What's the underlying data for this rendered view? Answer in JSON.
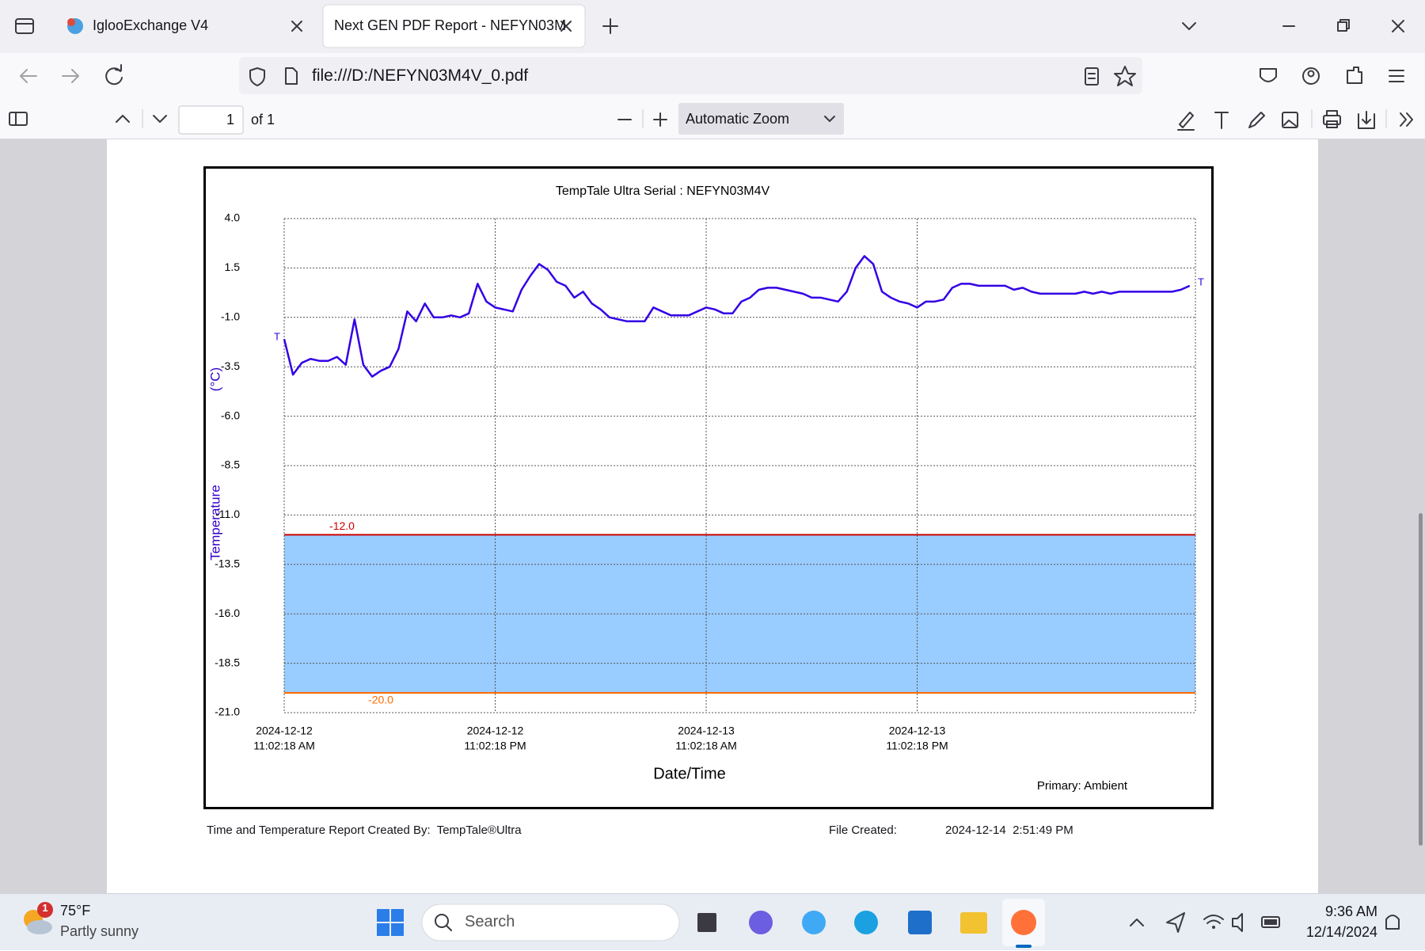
{
  "browser": {
    "tabs": [
      "IglooExchange V4",
      "Next GEN PDF Report - NEFYN03M"
    ],
    "url": "file:///D:/NEFYN03M4V_0.pdf"
  },
  "pdf_toolbar": {
    "page": "1",
    "page_count": "of 1",
    "zoom": "Automatic Zoom"
  },
  "chart_data": {
    "type": "line",
    "title": "TempTale Ultra  Serial : NEFYN03M4V",
    "y_label": "Temperature",
    "y_unit": "(°C)",
    "x_label": "Date/Time",
    "primary_label": "Primary: Ambient",
    "trip_marker": "T",
    "x": [
      "2024-12-12T11:02:18",
      "2024-12-12T11:32:18",
      "2024-12-12T12:02:18",
      "2024-12-12T12:32:18",
      "2024-12-12T13:02:18",
      "2024-12-12T13:32:18",
      "2024-12-12T14:02:18",
      "2024-12-12T14:32:18",
      "2024-12-12T15:02:18",
      "2024-12-12T15:32:18",
      "2024-12-12T16:02:18",
      "2024-12-12T16:32:18",
      "2024-12-12T17:02:18",
      "2024-12-12T17:32:18",
      "2024-12-12T18:02:18",
      "2024-12-12T18:32:18",
      "2024-12-12T19:02:18",
      "2024-12-12T19:32:18",
      "2024-12-12T20:02:18",
      "2024-12-12T20:32:18",
      "2024-12-12T21:02:18",
      "2024-12-12T21:32:18",
      "2024-12-12T22:02:18",
      "2024-12-12T22:32:18",
      "2024-12-12T23:02:18",
      "2024-12-12T23:32:18",
      "2024-12-13T00:02:18",
      "2024-12-13T00:32:18",
      "2024-12-13T01:02:18",
      "2024-12-13T01:32:18",
      "2024-12-13T02:02:18",
      "2024-12-13T02:32:18",
      "2024-12-13T03:02:18",
      "2024-12-13T03:32:18",
      "2024-12-13T04:02:18",
      "2024-12-13T04:32:18",
      "2024-12-13T05:02:18",
      "2024-12-13T05:32:18",
      "2024-12-13T06:02:18",
      "2024-12-13T06:32:18",
      "2024-12-13T07:02:18",
      "2024-12-13T07:32:18",
      "2024-12-13T08:02:18",
      "2024-12-13T08:32:18",
      "2024-12-13T09:02:18",
      "2024-12-13T09:32:18",
      "2024-12-13T10:02:18",
      "2024-12-13T10:32:18",
      "2024-12-13T11:02:18",
      "2024-12-13T11:32:18",
      "2024-12-13T12:02:18",
      "2024-12-13T12:32:18",
      "2024-12-13T13:02:18",
      "2024-12-13T13:32:18",
      "2024-12-13T14:02:18",
      "2024-12-13T14:32:18",
      "2024-12-13T15:02:18",
      "2024-12-13T15:32:18",
      "2024-12-13T16:02:18",
      "2024-12-13T16:32:18",
      "2024-12-13T17:02:18",
      "2024-12-13T17:32:18",
      "2024-12-13T18:02:18",
      "2024-12-13T18:32:18",
      "2024-12-13T19:02:18",
      "2024-12-13T19:32:18",
      "2024-12-13T20:02:18",
      "2024-12-13T20:32:18",
      "2024-12-13T21:02:18",
      "2024-12-13T21:32:18",
      "2024-12-13T22:02:18",
      "2024-12-13T22:32:18",
      "2024-12-13T23:02:18",
      "2024-12-13T23:32:18",
      "2024-12-14T00:02:18",
      "2024-12-14T00:32:18",
      "2024-12-14T01:02:18",
      "2024-12-14T01:32:18",
      "2024-12-14T02:02:18",
      "2024-12-14T02:32:18",
      "2024-12-14T03:02:18",
      "2024-12-14T03:32:18",
      "2024-12-14T04:02:18",
      "2024-12-14T04:32:18",
      "2024-12-14T05:02:18",
      "2024-12-14T05:32:18",
      "2024-12-14T06:02:18",
      "2024-12-14T06:32:18",
      "2024-12-14T07:02:18",
      "2024-12-14T07:32:18",
      "2024-12-14T08:02:18",
      "2024-12-14T08:32:18",
      "2024-12-14T09:02:18",
      "2024-12-14T09:32:18",
      "2024-12-14T10:02:18",
      "2024-12-14T10:32:18",
      "2024-12-14T11:02:18",
      "2024-12-14T11:32:18",
      "2024-12-14T12:02:18",
      "2024-12-14T12:32:18",
      "2024-12-14T13:02:18",
      "2024-12-14T13:32:18",
      "2024-12-14T14:02:18",
      "2024-12-14T14:32:18"
    ],
    "values": [
      -2.1,
      -3.9,
      -3.3,
      -3.1,
      -3.2,
      -3.2,
      -3.0,
      -3.4,
      -1.1,
      -3.4,
      -4.0,
      -3.7,
      -3.5,
      -2.6,
      -0.7,
      -1.2,
      -0.3,
      -1.0,
      -1.0,
      -0.9,
      -1.0,
      -0.8,
      0.7,
      -0.2,
      -0.5,
      -0.6,
      -0.7,
      0.4,
      1.1,
      1.7,
      1.4,
      0.8,
      0.6,
      0.0,
      0.3,
      -0.3,
      -0.6,
      -1.0,
      -1.1,
      -1.2,
      -1.2,
      -1.2,
      -0.5,
      -0.7,
      -0.9,
      -0.9,
      -0.9,
      -0.7,
      -0.5,
      -0.6,
      -0.8,
      -0.8,
      -0.2,
      0.0,
      0.4,
      0.5,
      0.5,
      0.4,
      0.3,
      0.2,
      0.0,
      0.0,
      -0.1,
      -0.2,
      0.3,
      1.5,
      2.1,
      1.7,
      0.3,
      0.0,
      -0.2,
      -0.3,
      -0.5,
      -0.2,
      -0.2,
      -0.1,
      0.5,
      0.7,
      0.7,
      0.6,
      0.6,
      0.6,
      0.6,
      0.4,
      0.5,
      0.3,
      0.2,
      0.2,
      0.2,
      0.2,
      0.2,
      0.3,
      0.2,
      0.3,
      0.2,
      0.3,
      0.3,
      0.3,
      0.3,
      0.3,
      0.3,
      0.3,
      0.4,
      0.6
    ],
    "color": "#3300e6",
    "xlim": [
      "2024-12-12T11:02:18",
      "2024-12-14T14:51:49"
    ],
    "xticks": [
      {
        "value": "2024-12-12T11:02:18",
        "label": [
          "2024-12-12",
          "11:02:18 AM"
        ]
      },
      {
        "value": "2024-12-12T23:02:18",
        "label": [
          "2024-12-12",
          "11:02:18 PM"
        ]
      },
      {
        "value": "2024-12-13T11:02:18",
        "label": [
          "2024-12-13",
          "11:02:18 AM"
        ]
      },
      {
        "value": "2024-12-13T23:02:18",
        "label": [
          "2024-12-13",
          "11:02:18 PM"
        ]
      }
    ],
    "ylim": [
      -21,
      4
    ],
    "yticks": [
      {
        "value": -21,
        "label": "-21.0"
      },
      -18.5,
      {
        "value": -16,
        "label": "-16.0"
      },
      -13.5,
      {
        "value": -11,
        "label": "-11.0"
      },
      -8.5,
      {
        "value": -6,
        "label": "-6.0"
      },
      -3.5,
      {
        "value": -1,
        "label": "-1.0"
      },
      1.5,
      {
        "value": 4,
        "label": "4.0"
      }
    ],
    "grid": true,
    "limits": [
      {
        "value": -12,
        "label": "-12.0",
        "color": "#cc0000"
      },
      {
        "value": -20,
        "label": "-20.0",
        "color": "#ff6a00"
      }
    ],
    "band_color": "#99ccff"
  },
  "report_footer": {
    "created_by": "Time and Temperature Report Created By:",
    "product": "TempTale®Ultra",
    "file_created_label": "File Created:",
    "file_created": "2024-12-14  2:51:49 PM"
  },
  "taskbar": {
    "weather_badge": "1",
    "temperature": "75°F",
    "conditions": "Partly sunny",
    "search": "Search",
    "time": "9:36 AM",
    "date": "12/14/2024"
  }
}
